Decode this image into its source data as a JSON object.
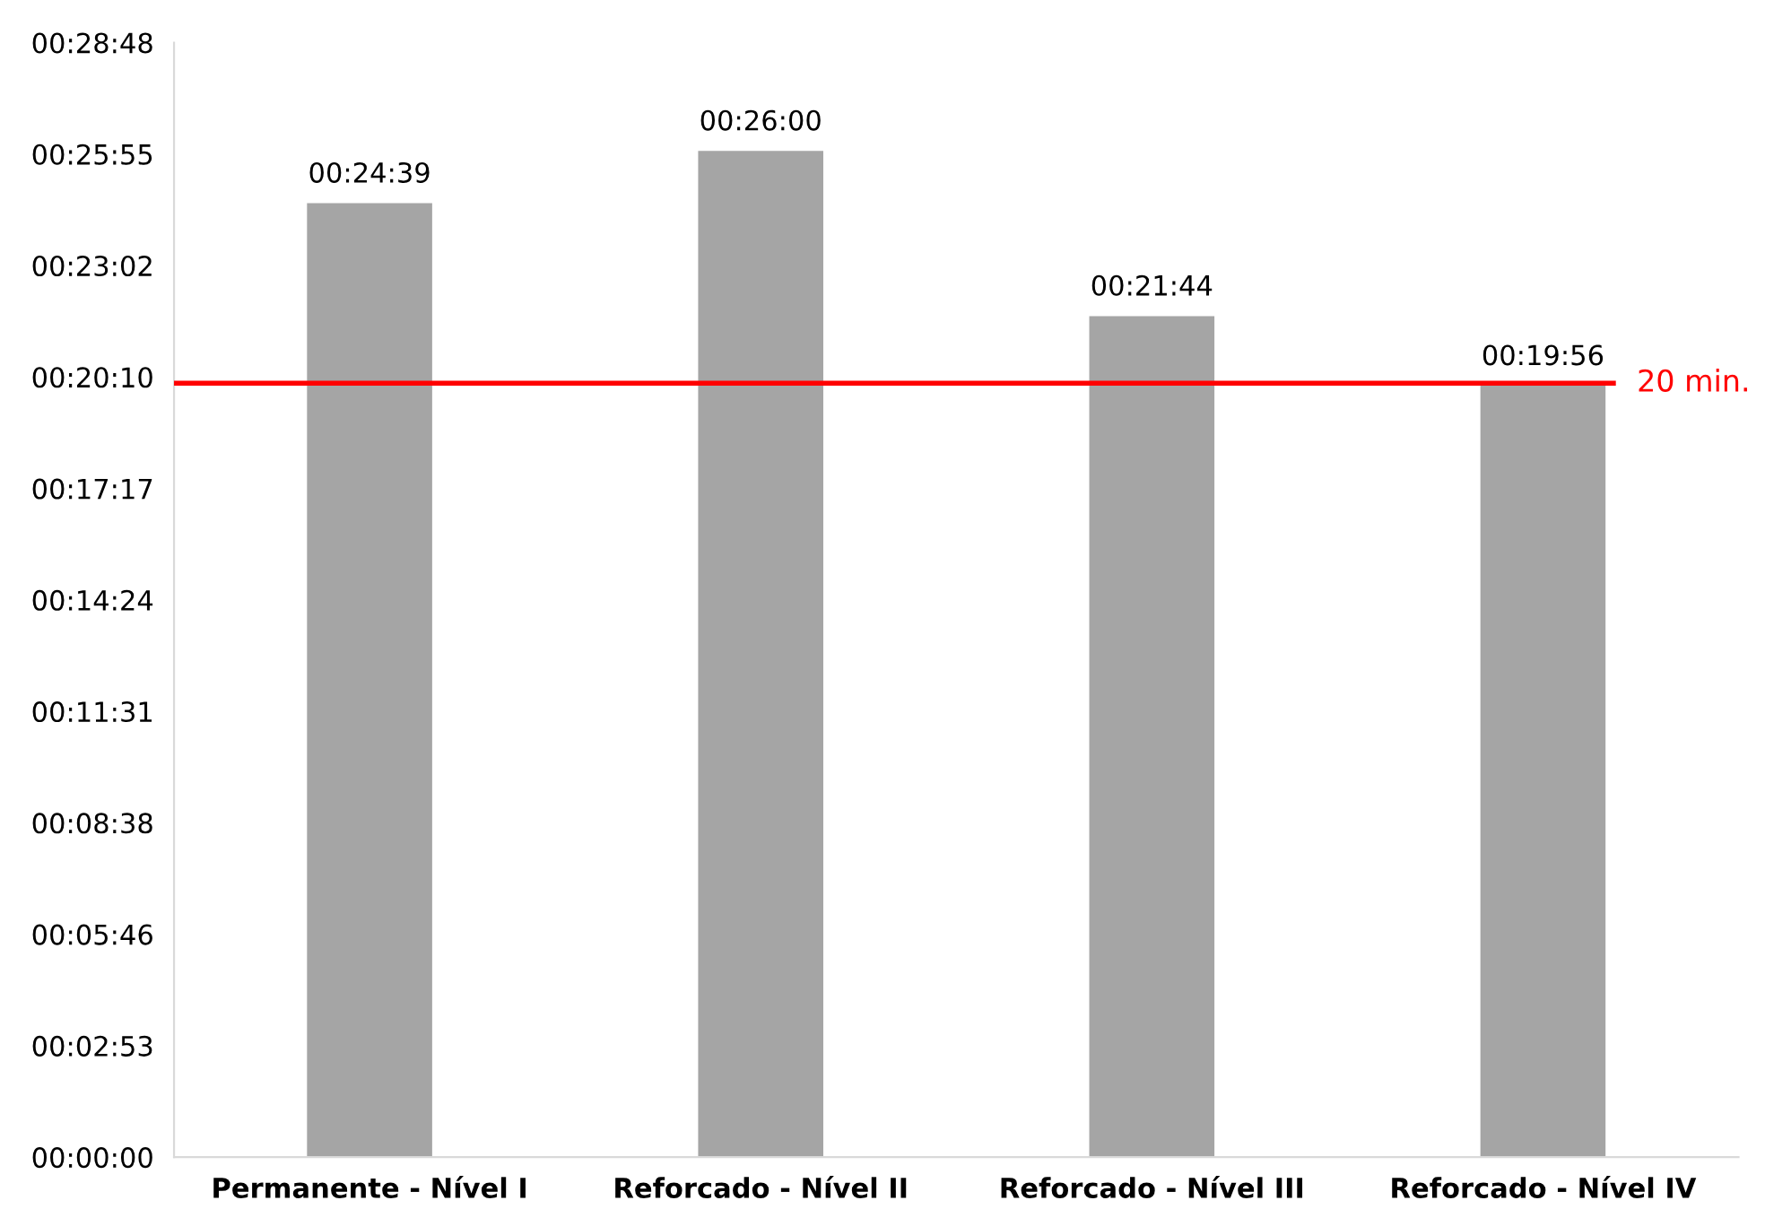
{
  "chart_data": {
    "type": "bar",
    "categories": [
      "Permanente - Nível I",
      "Reforcado - Nível II",
      "Reforcado - Nível III",
      "Reforcado - Nível IV"
    ],
    "values": [
      1479,
      1560,
      1304,
      1196
    ],
    "value_labels": [
      "00:24:39",
      "00:26:00",
      "00:21:44",
      "00:19:56"
    ],
    "color": "#a5a5a5",
    "ylim": [
      0,
      1728
    ],
    "yticks": [
      {
        "value": 0,
        "label": "00:00:00"
      },
      {
        "value": 172.8,
        "label": "00:02:53"
      },
      {
        "value": 345.6,
        "label": "00:05:46"
      },
      {
        "value": 518.4,
        "label": "00:08:38"
      },
      {
        "value": 691.2,
        "label": "00:11:31"
      },
      {
        "value": 864,
        "label": "00:14:24"
      },
      {
        "value": 1036.8,
        "label": "00:17:17"
      },
      {
        "value": 1209.6,
        "label": "00:20:10"
      },
      {
        "value": 1382.4,
        "label": "00:23:02"
      },
      {
        "value": 1555.2,
        "label": "00:25:55"
      },
      {
        "value": 1728,
        "label": "00:28:48"
      }
    ],
    "ref_lines": [
      {
        "axis": "y",
        "value": 1200,
        "label": "20 min.",
        "color": "#ff0000"
      }
    ],
    "grid": false,
    "legend": false
  }
}
